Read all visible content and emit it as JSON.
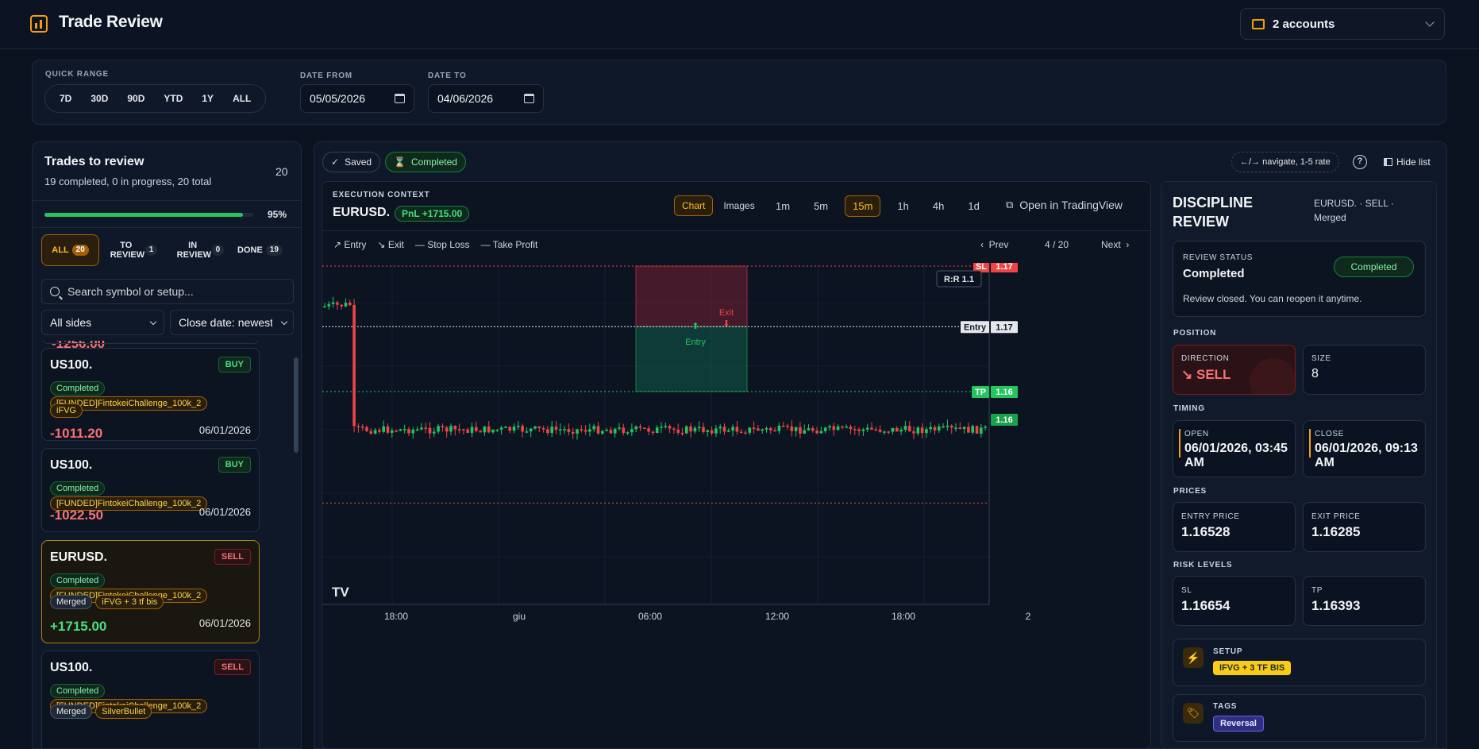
{
  "header": {
    "title": "Trade Review",
    "accounts": "2 accounts"
  },
  "filters": {
    "quick_range_label": "QUICK RANGE",
    "ranges": [
      "7D",
      "30D",
      "90D",
      "YTD",
      "1Y",
      "ALL"
    ],
    "date_from_label": "DATE FROM",
    "date_from": "05/05/2026",
    "date_to_label": "DATE TO",
    "date_to": "04/06/2026"
  },
  "list": {
    "title": "Trades to review",
    "subtitle": "19 completed, 0 in progress, 20 total",
    "count": "20",
    "progress_pct": "95%",
    "progress": 0.95,
    "tabs": [
      {
        "label": "ALL",
        "count": "20"
      },
      {
        "label": "TO REVIEW",
        "count": "1"
      },
      {
        "label": "IN REVIEW",
        "count": "0"
      },
      {
        "label": "DONE",
        "count": "19"
      }
    ],
    "search_placeholder": "Search symbol or setup...",
    "side_filter": "All sides",
    "sort": "Close date: newest",
    "partial_pnl": "-1256.00",
    "trades": [
      {
        "symbol": "US100.",
        "side": "BUY",
        "status": "Completed",
        "account": "[FUNDED]FintokeiChallenge_100k_2",
        "tags": [
          "iFVG"
        ],
        "pnl": "-1011.20",
        "date": "06/01/2026"
      },
      {
        "symbol": "US100.",
        "side": "BUY",
        "status": "Completed",
        "account": "[FUNDED]FintokeiChallenge_100k_2",
        "tags": [],
        "pnl": "-1022.50",
        "date": "06/01/2026"
      },
      {
        "symbol": "EURUSD.",
        "side": "SELL",
        "status": "Completed",
        "account": "[FUNDED]FintokeiChallenge_100k_2",
        "tags": [
          "Merged",
          "iFVG + 3 tf bis"
        ],
        "pnl": "+1715.00",
        "date": "06/01/2026"
      },
      {
        "symbol": "US100.",
        "side": "SELL",
        "status": "Completed",
        "account": "[FUNDED]FintokeiChallenge_100k_2",
        "tags": [
          "Merged",
          "SilverBullet"
        ],
        "pnl": "",
        "date": ""
      }
    ]
  },
  "toolbar": {
    "saved": "Saved",
    "completed": "Completed",
    "nav_hint": "←/→ navigate, 1-5 rate",
    "help": "?",
    "hide_list": "Hide list"
  },
  "exec": {
    "label": "EXECUTION CONTEXT",
    "symbol": "EURUSD.",
    "pnl": "PnL +1715.00",
    "view_tabs": [
      "Chart",
      "Images"
    ],
    "timeframes": [
      "1m",
      "5m",
      "15m",
      "1h",
      "4h",
      "1d"
    ],
    "active_tf": "15m",
    "open_tv": "Open in TradingView",
    "legend": [
      "Entry",
      "Exit",
      "Stop Loss",
      "Take Profit"
    ],
    "prev": "Prev",
    "page": "4 / 20",
    "next": "Next"
  },
  "chart_data": {
    "type": "candlestick",
    "symbol": "EURUSD.",
    "timeframe": "15m",
    "x_ticks": [
      "18:00",
      "giu",
      "06:00",
      "12:00",
      "18:00",
      "2"
    ],
    "levels": {
      "sl": 1.16654,
      "entry": 1.16528,
      "tp": 1.16393,
      "exit": 1.16285
    },
    "level_labels": {
      "sl": "SL",
      "sl_price": "1.17",
      "entry": "Entry",
      "entry_price": "1.17",
      "tp": "TP",
      "tp_price": "1.16",
      "last_price": "1.16"
    },
    "rr": "R:R 1.1",
    "markers": {
      "entry": "Entry",
      "exit": "Exit"
    }
  },
  "review": {
    "title": "DISCIPLINE REVIEW",
    "meta": "EURUSD. · SELL · Merged",
    "status_label": "REVIEW STATUS",
    "status": "Completed",
    "status_badge": "Completed",
    "status_note": "Review closed. You can reopen it anytime.",
    "position_label": "POSITION",
    "direction_label": "DIRECTION",
    "direction": "SELL",
    "size_label": "SIZE",
    "size": "8",
    "timing_label": "TIMING",
    "open_label": "OPEN",
    "open": "06/01/2026, 03:45 AM",
    "close_label": "CLOSE",
    "close": "06/01/2026, 09:13 AM",
    "prices_label": "PRICES",
    "entry_label": "ENTRY PRICE",
    "entry": "1.16528",
    "exit_label": "EXIT PRICE",
    "exit": "1.16285",
    "risk_label": "RISK LEVELS",
    "sl_label": "SL",
    "sl": "1.16654",
    "tp_label": "TP",
    "tp": "1.16393",
    "setup_label": "SETUP",
    "setup": "IFVG + 3 TF BIS",
    "tags_label": "TAGS",
    "tag": "Reversal"
  }
}
